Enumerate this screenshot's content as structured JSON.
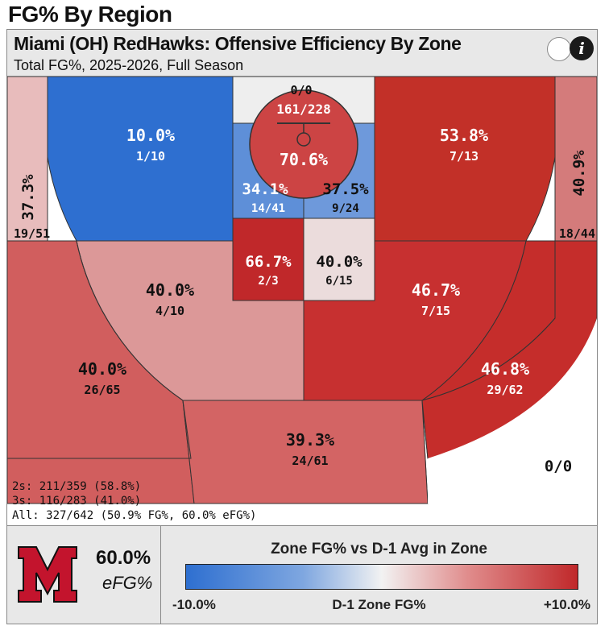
{
  "page_title": "FG% By Region",
  "header": {
    "title": "Miami (OH) RedHawks: Offensive Efficiency By Zone",
    "subtitle": "Total FG%, 2025-2026, Full Season",
    "info_glyph": "i"
  },
  "chart_data": {
    "type": "heatmap",
    "title": "Miami (OH) RedHawks: Offensive Efficiency By Zone",
    "subtitle": "Total FG%, 2025-2026, Full Season",
    "zones": [
      {
        "id": "corner-left",
        "pct": "37.3%",
        "made": 19,
        "att": 51,
        "ratio": "19/51",
        "fill": "#e8bcbc"
      },
      {
        "id": "short-left-baseline",
        "pct": "10.0%",
        "made": 1,
        "att": 10,
        "ratio": "1/10",
        "fill": "#2e6fd0"
      },
      {
        "id": "behind-basket",
        "pct": "",
        "made": 0,
        "att": 0,
        "ratio": "0/0",
        "fill": "#eeeeee"
      },
      {
        "id": "rim",
        "pct": "70.6%",
        "made": 161,
        "att": 228,
        "ratio": "161/228",
        "fill": "#cc4444"
      },
      {
        "id": "paint-left",
        "pct": "34.1%",
        "made": 14,
        "att": 41,
        "ratio": "14/41",
        "fill": "#5e8fd8"
      },
      {
        "id": "paint-right",
        "pct": "37.5%",
        "made": 9,
        "att": 24,
        "ratio": "9/24",
        "fill": "#6e99db"
      },
      {
        "id": "short-right-baseline",
        "pct": "53.8%",
        "made": 7,
        "att": 13,
        "ratio": "7/13",
        "fill": "#c23028"
      },
      {
        "id": "corner-right",
        "pct": "40.9%",
        "made": 18,
        "att": 44,
        "ratio": "18/44",
        "fill": "#d47b7b"
      },
      {
        "id": "lane-left",
        "pct": "66.7%",
        "made": 2,
        "att": 3,
        "ratio": "2/3",
        "fill": "#c0282a"
      },
      {
        "id": "lane-right",
        "pct": "40.0%",
        "made": 6,
        "att": 15,
        "ratio": "6/15",
        "fill": "#ebdcdc"
      },
      {
        "id": "midrange-left",
        "pct": "40.0%",
        "made": 4,
        "att": 10,
        "ratio": "4/10",
        "fill": "#dc9898"
      },
      {
        "id": "midrange-right",
        "pct": "46.7%",
        "made": 7,
        "att": 15,
        "ratio": "7/15",
        "fill": "#c73030"
      },
      {
        "id": "wing-left",
        "pct": "40.0%",
        "made": 26,
        "att": 65,
        "ratio": "26/65",
        "fill": "#d15e5e"
      },
      {
        "id": "top-key",
        "pct": "39.3%",
        "made": 24,
        "att": 61,
        "ratio": "24/61",
        "fill": "#d36464"
      },
      {
        "id": "wing-right",
        "pct": "46.8%",
        "made": 29,
        "att": 62,
        "ratio": "29/62",
        "fill": "#c52d2b"
      },
      {
        "id": "deep",
        "pct": "",
        "made": 0,
        "att": 0,
        "ratio": "0/0",
        "fill": "#ffffff"
      }
    ],
    "legend": {
      "title": "Zone FG% vs D-1 Avg in Zone",
      "min_label": "-10.0%",
      "mid_label": "D-1 Zone FG%",
      "max_label": "+10.0%",
      "colors": [
        "#2e6fd0",
        "#f2f2f2",
        "#c0282a"
      ]
    }
  },
  "summary": {
    "twos": "2s: 211/359 (58.8%)",
    "threes": "3s: 116/283 (41.0%)",
    "all": "All: 327/642 (50.9% FG%, 60.0% eFG%)"
  },
  "efg": {
    "value": "60.0%",
    "label": "eFG%"
  },
  "logo": {
    "name": "miami-m-logo",
    "color": "#c3142d"
  }
}
